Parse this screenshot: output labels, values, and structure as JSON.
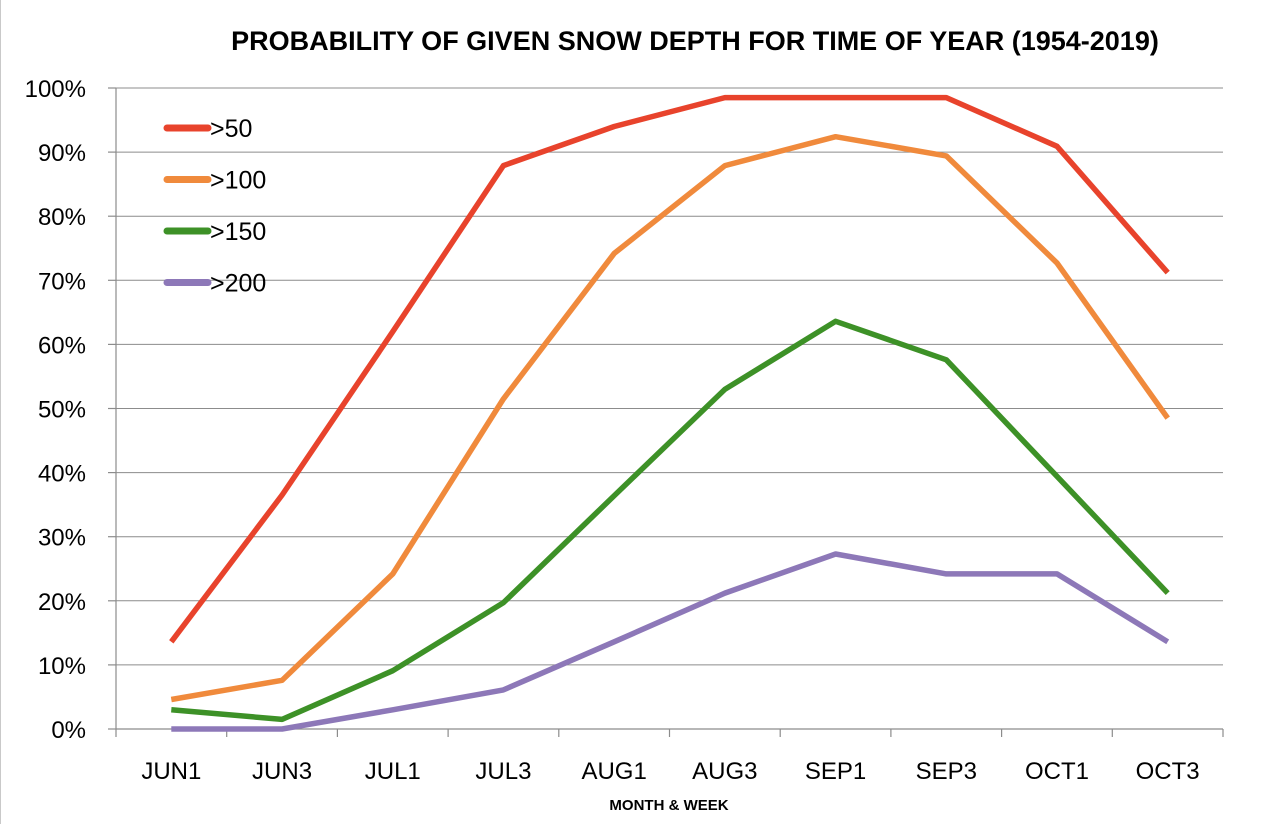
{
  "chart_data": {
    "type": "line",
    "title": "PROBABILITY OF GIVEN SNOW DEPTH FOR TIME OF YEAR (1954-2019)",
    "xlabel": "MONTH & WEEK",
    "ylabel": "",
    "ylim": [
      0,
      100
    ],
    "y_ticks": [
      0,
      10,
      20,
      30,
      40,
      50,
      60,
      70,
      80,
      90,
      100
    ],
    "y_tick_labels": [
      "0%",
      "10%",
      "20%",
      "30%",
      "40%",
      "50%",
      "60%",
      "70%",
      "80%",
      "90%",
      "100%"
    ],
    "grid": true,
    "legend_position": "top-left",
    "categories": [
      "JUN1",
      "JUN3",
      "JUL1",
      "JUL3",
      "AUG1",
      "AUG3",
      "SEP1",
      "SEP3",
      "OCT1",
      "OCT3"
    ],
    "series": [
      {
        "name": ">50",
        "color": "#e8432c",
        "values": [
          13.6,
          36.5,
          62.0,
          87.9,
          94.0,
          98.5,
          98.5,
          98.5,
          90.9,
          71.2
        ]
      },
      {
        "name": ">100",
        "color": "#f08a3c",
        "values": [
          4.6,
          7.6,
          24.2,
          51.5,
          74.2,
          87.9,
          92.4,
          89.4,
          72.7,
          48.5
        ]
      },
      {
        "name": ">150",
        "color": "#3d9127",
        "values": [
          3.0,
          1.5,
          9.1,
          19.7,
          36.4,
          53.0,
          63.6,
          57.6,
          39.4,
          21.2
        ]
      },
      {
        "name": ">200",
        "color": "#8d78b8",
        "values": [
          0.0,
          0.0,
          3.0,
          6.1,
          13.6,
          21.2,
          27.3,
          24.2,
          24.2,
          13.6
        ]
      }
    ]
  }
}
